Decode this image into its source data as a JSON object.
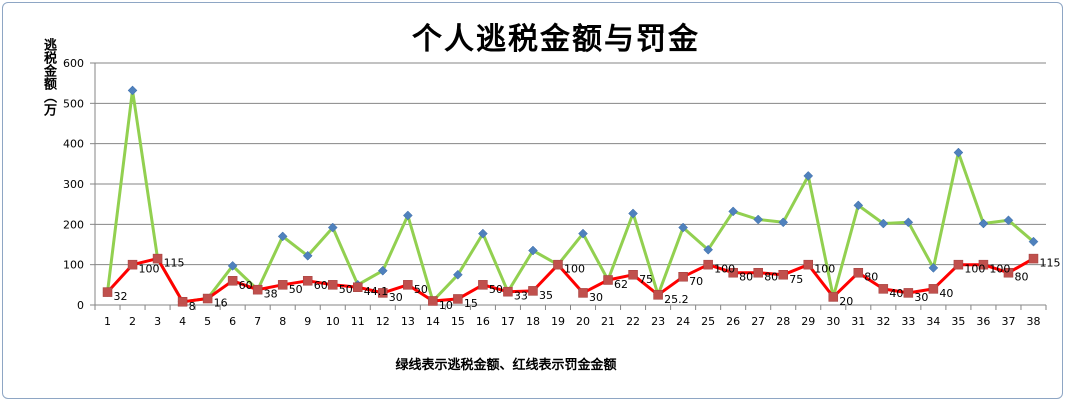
{
  "chart_data": {
    "type": "line",
    "title": "个人逃税金额与罚金",
    "ylabel": "逃税金额（万",
    "xlabel": "绿线表示逃税金额、红线表示罚金金额",
    "ylim": [
      0,
      600
    ],
    "yticks": [
      0,
      100,
      200,
      300,
      400,
      500,
      600
    ],
    "grid": true,
    "categories": [
      "1",
      "2",
      "3",
      "4",
      "5",
      "6",
      "7",
      "8",
      "9",
      "10",
      "11",
      "12",
      "13",
      "14",
      "15",
      "16",
      "17",
      "18",
      "19",
      "20",
      "21",
      "22",
      "23",
      "24",
      "25",
      "26",
      "27",
      "28",
      "29",
      "30",
      "31",
      "32",
      "33",
      "34",
      "35",
      "36",
      "37",
      "38"
    ],
    "series": [
      {
        "name": "",
        "color": "#92d050",
        "marker": "diamond",
        "marker_color": "#4f81bd",
        "show_labels": false,
        "values": [
          32,
          532,
          115,
          8,
          16,
          97,
          38,
          170,
          122,
          192,
          50,
          85,
          222,
          10,
          75,
          177,
          33,
          135,
          100,
          177,
          62,
          227,
          25.2,
          192,
          137,
          232,
          212,
          205,
          320,
          20,
          247,
          202,
          205,
          92,
          378,
          202,
          210,
          157
        ]
      },
      {
        "name": "",
        "color": "#ff0000",
        "marker": "square",
        "marker_color": "#c0504d",
        "show_labels": true,
        "values": [
          32,
          100,
          115,
          8,
          16,
          60,
          38,
          50,
          60,
          50,
          44.1,
          30,
          50,
          10,
          15,
          50,
          33,
          35,
          100,
          30,
          62,
          75,
          25.2,
          70,
          100,
          80,
          80,
          75,
          100,
          20,
          80,
          40,
          30,
          40,
          100,
          100,
          80,
          115
        ],
        "labels": [
          "32",
          "100",
          "115",
          "8",
          "16",
          "60",
          "38",
          "50",
          "60",
          "50",
          "44.1",
          "30",
          "50",
          "10",
          "15",
          "50",
          "33",
          "35",
          "100",
          "30",
          "62",
          "75",
          "25.2",
          "70",
          "100",
          "80",
          "80",
          "75",
          "100",
          "20",
          "80",
          "40",
          "30",
          "40",
          "100",
          "100",
          "80",
          "115"
        ]
      }
    ]
  }
}
